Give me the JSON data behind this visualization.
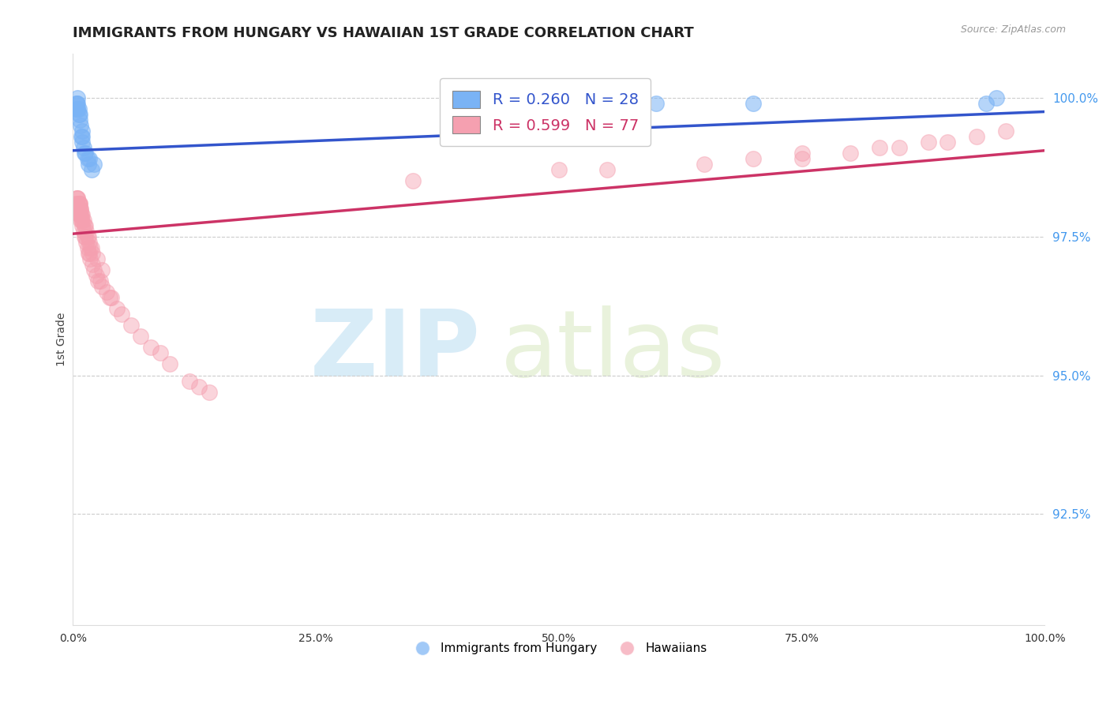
{
  "title": "IMMIGRANTS FROM HUNGARY VS HAWAIIAN 1ST GRADE CORRELATION CHART",
  "source_text": "Source: ZipAtlas.com",
  "ylabel": "1st Grade",
  "blue_R": 0.26,
  "blue_N": 28,
  "pink_R": 0.599,
  "pink_N": 77,
  "blue_color": "#7ab3f5",
  "pink_color": "#f5a0b0",
  "blue_line_color": "#3355cc",
  "pink_line_color": "#cc3366",
  "legend_label_blue": "Immigrants from Hungary",
  "legend_label_pink": "Hawaiians",
  "xmin": 0.0,
  "xmax": 1.0,
  "ymin": 0.905,
  "ymax": 1.008,
  "yticks": [
    0.925,
    0.95,
    0.975,
    1.0
  ],
  "ytick_labels": [
    "92.5%",
    "95.0%",
    "97.5%",
    "100.0%"
  ],
  "xticks": [
    0.0,
    0.25,
    0.5,
    0.75,
    1.0
  ],
  "xtick_labels": [
    "0.0%",
    "25.0%",
    "50.0%",
    "75.0%",
    "100.0%"
  ],
  "blue_trend_x0": 0.0,
  "blue_trend_x1": 1.0,
  "blue_trend_y0": 0.9905,
  "blue_trend_y1": 0.9975,
  "pink_trend_x0": 0.0,
  "pink_trend_x1": 1.0,
  "pink_trend_y0": 0.9755,
  "pink_trend_y1": 0.9905,
  "blue_x": [
    0.004,
    0.004,
    0.004,
    0.005,
    0.005,
    0.005,
    0.005,
    0.006,
    0.006,
    0.007,
    0.007,
    0.008,
    0.009,
    0.01,
    0.01,
    0.01,
    0.011,
    0.012,
    0.013,
    0.015,
    0.016,
    0.017,
    0.019,
    0.022,
    0.6,
    0.7,
    0.94,
    0.95
  ],
  "blue_y": [
    0.998,
    0.999,
    0.999,
    0.998,
    0.998,
    0.999,
    1.0,
    0.997,
    0.998,
    0.996,
    0.997,
    0.995,
    0.993,
    0.992,
    0.993,
    0.994,
    0.991,
    0.99,
    0.99,
    0.989,
    0.988,
    0.989,
    0.987,
    0.988,
    0.999,
    0.999,
    0.999,
    1.0
  ],
  "pink_x": [
    0.003,
    0.004,
    0.004,
    0.005,
    0.006,
    0.006,
    0.007,
    0.007,
    0.008,
    0.008,
    0.009,
    0.01,
    0.01,
    0.011,
    0.012,
    0.013,
    0.014,
    0.015,
    0.016,
    0.017,
    0.018,
    0.02,
    0.022,
    0.024,
    0.026,
    0.028,
    0.03,
    0.035,
    0.038,
    0.04,
    0.045,
    0.05,
    0.06,
    0.07,
    0.08,
    0.09,
    0.1,
    0.12,
    0.13,
    0.14,
    0.005,
    0.006,
    0.007,
    0.008,
    0.009,
    0.01,
    0.011,
    0.012,
    0.013,
    0.014,
    0.015,
    0.016,
    0.017,
    0.018,
    0.019,
    0.02,
    0.025,
    0.03,
    0.004,
    0.005,
    0.006,
    0.007,
    0.008,
    0.35,
    0.5,
    0.55,
    0.65,
    0.7,
    0.75,
    0.75,
    0.8,
    0.83,
    0.85,
    0.88,
    0.9,
    0.93,
    0.96
  ],
  "pink_y": [
    0.981,
    0.98,
    0.981,
    0.98,
    0.979,
    0.98,
    0.979,
    0.98,
    0.978,
    0.979,
    0.978,
    0.977,
    0.978,
    0.976,
    0.975,
    0.975,
    0.974,
    0.973,
    0.972,
    0.972,
    0.971,
    0.97,
    0.969,
    0.968,
    0.967,
    0.967,
    0.966,
    0.965,
    0.964,
    0.964,
    0.962,
    0.961,
    0.959,
    0.957,
    0.955,
    0.954,
    0.952,
    0.949,
    0.948,
    0.947,
    0.982,
    0.981,
    0.981,
    0.98,
    0.979,
    0.979,
    0.978,
    0.977,
    0.977,
    0.976,
    0.975,
    0.975,
    0.974,
    0.973,
    0.973,
    0.972,
    0.971,
    0.969,
    0.982,
    0.982,
    0.981,
    0.981,
    0.98,
    0.985,
    0.987,
    0.987,
    0.988,
    0.989,
    0.99,
    0.989,
    0.99,
    0.991,
    0.991,
    0.992,
    0.992,
    0.993,
    0.994
  ]
}
